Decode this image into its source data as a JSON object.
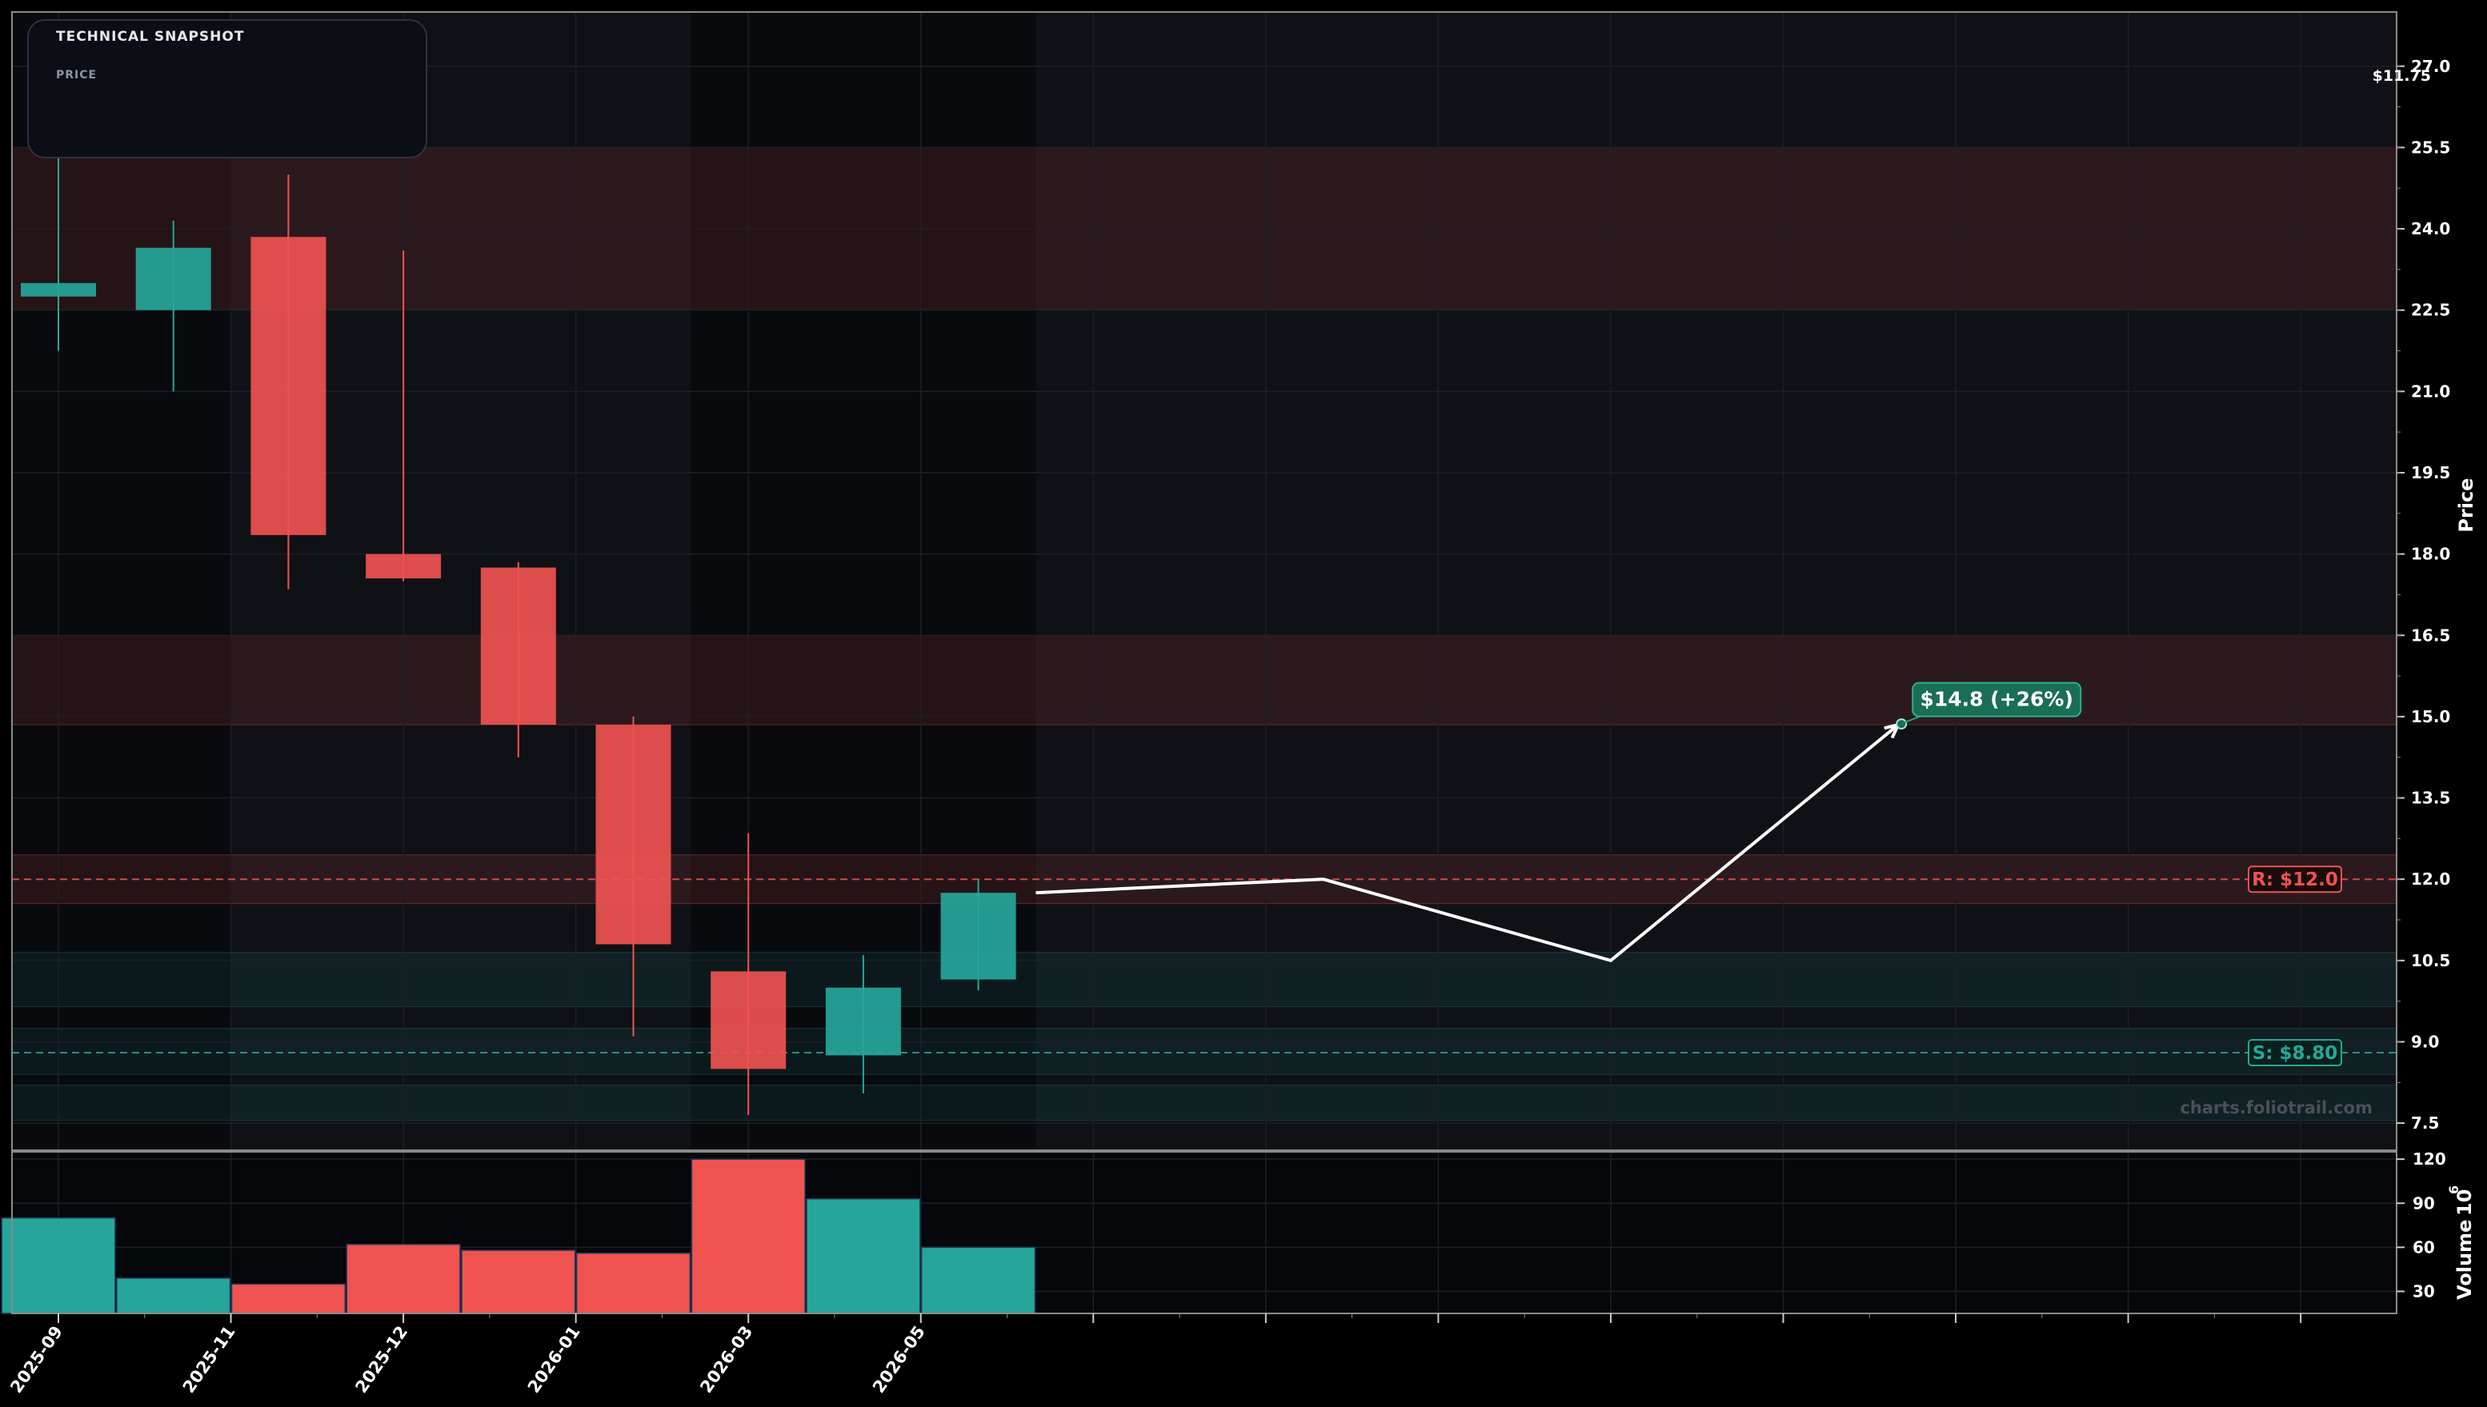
{
  "snapshot": {
    "title": "TECHNICAL SNAPSHOT",
    "price_label": "PRICE",
    "price_value": "$11.75"
  },
  "watermark": "charts.foliotrail.com",
  "colors": {
    "bull": "#26a69a",
    "bear": "#ef5350",
    "background": "#06070b",
    "target_badge": "#1a6e57"
  },
  "chart_data": {
    "type": "candlestick",
    "price_axis": {
      "label": "Price",
      "range": [
        7.0,
        28.0
      ],
      "ticks": [
        "7.5",
        "9.0",
        "10.5",
        "12.0",
        "13.5",
        "15.0",
        "16.5",
        "18.0",
        "19.5",
        "21.0",
        "22.5",
        "24.0",
        "25.5",
        "27.0"
      ]
    },
    "x_axis": {
      "tick_labels": [
        "2025-09",
        "2025-11",
        "2025-12",
        "2026-01",
        "2026-03",
        "2026-05",
        "",
        "",
        "",
        "",
        "",
        "",
        "",
        ""
      ]
    },
    "candles": [
      {
        "open": 22.75,
        "high": 25.5,
        "low": 21.75,
        "close": 23.0
      },
      {
        "open": 22.5,
        "high": 24.15,
        "low": 21.0,
        "close": 23.65
      },
      {
        "open": 23.85,
        "high": 25.0,
        "low": 17.35,
        "close": 18.35
      },
      {
        "open": 18.0,
        "high": 23.6,
        "low": 17.5,
        "close": 17.55
      },
      {
        "open": 17.75,
        "high": 17.85,
        "low": 14.25,
        "close": 14.85
      },
      {
        "open": 14.85,
        "high": 15.0,
        "low": 9.1,
        "close": 10.8
      },
      {
        "open": 10.3,
        "high": 12.85,
        "low": 7.65,
        "close": 8.5
      },
      {
        "open": 8.75,
        "high": 10.6,
        "low": 8.05,
        "close": 10.0
      },
      {
        "open": 10.15,
        "high": 12.0,
        "low": 9.95,
        "close": 11.75
      }
    ],
    "volume": {
      "label": "Volume",
      "exponent_label": "10",
      "exponent": "6",
      "range": [
        15,
        125
      ],
      "ticks": [
        "30",
        "60",
        "90",
        "120"
      ],
      "values": [
        80,
        39,
        35,
        62,
        58,
        56,
        120,
        93,
        60
      ]
    },
    "resistance": {
      "label": "R: $12.0",
      "value": 12.0
    },
    "support": {
      "label": "S: $8.80",
      "value": 8.8
    },
    "zones": [
      {
        "low": 22.5,
        "high": 25.5,
        "kind": "resistance"
      },
      {
        "low": 14.85,
        "high": 16.5,
        "kind": "resistance"
      },
      {
        "low": 11.55,
        "high": 12.45,
        "kind": "resistance"
      },
      {
        "low": 9.65,
        "high": 10.65,
        "kind": "support"
      },
      {
        "low": 8.4,
        "high": 9.25,
        "kind": "support"
      },
      {
        "low": 7.55,
        "high": 8.2,
        "kind": "support"
      }
    ],
    "projection": {
      "points": [
        [
          8.5,
          11.75
        ],
        [
          11.0,
          12.0
        ],
        [
          13.5,
          10.5
        ],
        [
          16.0,
          14.85
        ]
      ],
      "target_label": "$14.8 (+26%)",
      "target_value": 14.8
    }
  }
}
